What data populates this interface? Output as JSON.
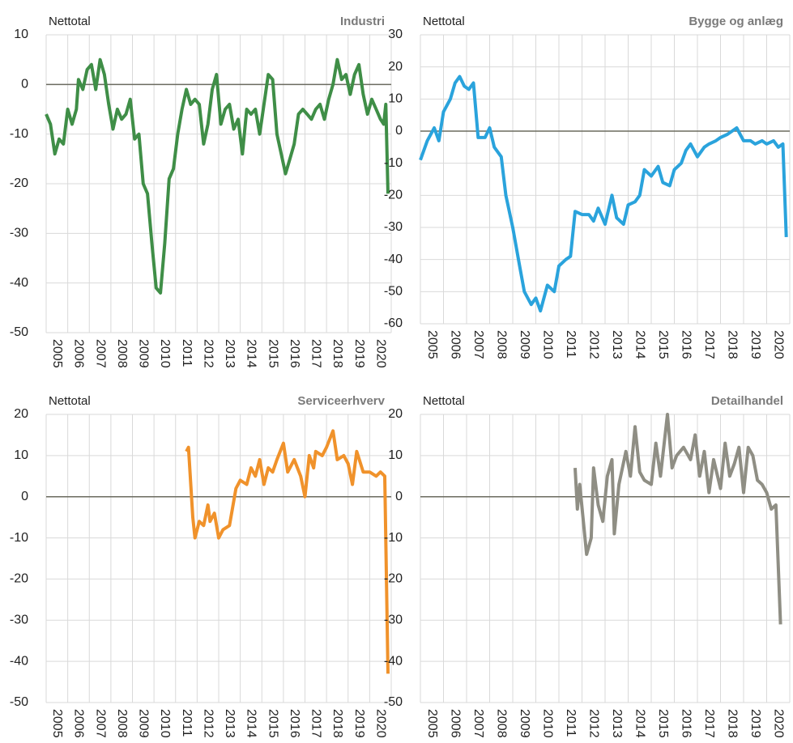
{
  "chart_data": [
    {
      "type": "line",
      "title": "Industri",
      "y_label": "Nettotal",
      "xlim": [
        2004.5,
        2020.5
      ],
      "xticks": [
        2005,
        2006,
        2007,
        2008,
        2009,
        2010,
        2011,
        2012,
        2013,
        2014,
        2015,
        2016,
        2017,
        2018,
        2019,
        2020
      ],
      "ylim": [
        -50,
        10
      ],
      "yticks": [
        -50,
        -40,
        -30,
        -20,
        -10,
        0,
        10
      ],
      "grid": true,
      "x": [
        2004.5,
        2004.7,
        2004.9,
        2005.1,
        2005.3,
        2005.5,
        2005.7,
        2005.9,
        2006.0,
        2006.2,
        2006.4,
        2006.6,
        2006.8,
        2007.0,
        2007.2,
        2007.4,
        2007.6,
        2007.8,
        2008.0,
        2008.2,
        2008.4,
        2008.6,
        2008.8,
        2009.0,
        2009.2,
        2009.4,
        2009.6,
        2009.8,
        2010.0,
        2010.2,
        2010.4,
        2010.6,
        2010.8,
        2011.0,
        2011.2,
        2011.4,
        2011.6,
        2011.8,
        2012.0,
        2012.2,
        2012.4,
        2012.6,
        2012.8,
        2013.0,
        2013.2,
        2013.4,
        2013.6,
        2013.8,
        2014.0,
        2014.2,
        2014.4,
        2014.6,
        2014.8,
        2015.0,
        2015.2,
        2015.4,
        2015.6,
        2015.8,
        2016.0,
        2016.2,
        2016.4,
        2016.6,
        2016.8,
        2017.0,
        2017.2,
        2017.4,
        2017.6,
        2017.8,
        2018.0,
        2018.2,
        2018.4,
        2018.6,
        2018.8,
        2019.0,
        2019.2,
        2019.4,
        2019.6,
        2019.8,
        2020.0,
        2020.15,
        2020.25,
        2020.35
      ],
      "series": [
        {
          "color": "#3f8e47",
          "values": [
            -6,
            -8,
            -14,
            -11,
            -12,
            -5,
            -8,
            -5,
            1,
            -1,
            3,
            4,
            -1,
            5,
            2,
            -4,
            -9,
            -5,
            -7,
            -6,
            -3,
            -11,
            -10,
            -20,
            -22,
            -32,
            -41,
            -42,
            -32,
            -19,
            -17,
            -10,
            -5,
            -1,
            -4,
            -3,
            -4,
            -12,
            -8,
            -1,
            2,
            -8,
            -5,
            -4,
            -9,
            -7,
            -14,
            -5,
            -6,
            -5,
            -10,
            -4,
            2,
            1,
            -10,
            -14,
            -18,
            -15,
            -12,
            -6,
            -5,
            -6,
            -7,
            -5,
            -4,
            -7,
            -3,
            0,
            5,
            1,
            2,
            -2,
            2,
            4,
            -2,
            -6,
            -3,
            -5,
            -7,
            -8,
            -4,
            -22
          ]
        }
      ]
    },
    {
      "type": "line",
      "title": "Bygge og anlæg",
      "y_label": "Nettotal",
      "xlim": [
        2004.5,
        2020.5
      ],
      "xticks": [
        2005,
        2006,
        2007,
        2008,
        2009,
        2010,
        2011,
        2012,
        2013,
        2014,
        2015,
        2016,
        2017,
        2018,
        2019,
        2020
      ],
      "ylim": [
        -60,
        30
      ],
      "yticks": [
        -60,
        -50,
        -40,
        -30,
        -20,
        -10,
        0,
        10,
        20,
        30
      ],
      "grid": true,
      "x": [
        2004.5,
        2004.8,
        2005.1,
        2005.3,
        2005.5,
        2005.8,
        2006.0,
        2006.2,
        2006.4,
        2006.6,
        2006.8,
        2007.0,
        2007.3,
        2007.5,
        2007.7,
        2008.0,
        2008.2,
        2008.5,
        2008.8,
        2009.0,
        2009.3,
        2009.5,
        2009.7,
        2010.0,
        2010.3,
        2010.5,
        2010.8,
        2011.0,
        2011.2,
        2011.5,
        2011.8,
        2012.0,
        2012.2,
        2012.5,
        2012.8,
        2013.0,
        2013.3,
        2013.5,
        2013.8,
        2014.0,
        2014.2,
        2014.5,
        2014.8,
        2015.0,
        2015.3,
        2015.5,
        2015.8,
        2016.0,
        2016.2,
        2016.5,
        2016.8,
        2017.0,
        2017.3,
        2017.5,
        2017.8,
        2018.0,
        2018.2,
        2018.5,
        2018.8,
        2019.0,
        2019.3,
        2019.5,
        2019.8,
        2020.0,
        2020.2,
        2020.35
      ],
      "series": [
        {
          "color": "#2aa3dc",
          "values": [
            -9,
            -3,
            1,
            -3,
            6,
            10,
            15,
            17,
            14,
            13,
            15,
            -2,
            -2,
            1,
            -5,
            -8,
            -20,
            -30,
            -42,
            -50,
            -54,
            -52,
            -56,
            -48,
            -50,
            -42,
            -40,
            -39,
            -25,
            -26,
            -26,
            -28,
            -24,
            -29,
            -20,
            -27,
            -29,
            -23,
            -22,
            -20,
            -12,
            -14,
            -11,
            -16,
            -17,
            -12,
            -10,
            -6,
            -4,
            -8,
            -5,
            -4,
            -3,
            -2,
            -1,
            0,
            1,
            -3,
            -3,
            -4,
            -3,
            -4,
            -3,
            -5,
            -4,
            -33
          ]
        }
      ]
    },
    {
      "type": "line",
      "title": "Serviceerhverv",
      "y_label": "Nettotal",
      "xlim": [
        2004.5,
        2020.5
      ],
      "xticks": [
        2005,
        2006,
        2007,
        2008,
        2009,
        2010,
        2011,
        2012,
        2013,
        2014,
        2015,
        2016,
        2017,
        2018,
        2019,
        2020
      ],
      "ylim": [
        -50,
        20
      ],
      "yticks": [
        -50,
        -40,
        -30,
        -20,
        -10,
        0,
        10,
        20
      ],
      "grid": true,
      "x": [
        2011.0,
        2011.1,
        2011.3,
        2011.4,
        2011.6,
        2011.8,
        2012.0,
        2012.1,
        2012.3,
        2012.5,
        2012.7,
        2013.0,
        2013.3,
        2013.5,
        2013.8,
        2014.0,
        2014.2,
        2014.4,
        2014.6,
        2014.8,
        2015.0,
        2015.2,
        2015.5,
        2015.7,
        2016.0,
        2016.3,
        2016.5,
        2016.7,
        2016.9,
        2017.0,
        2017.3,
        2017.5,
        2017.8,
        2018.0,
        2018.3,
        2018.5,
        2018.7,
        2018.9,
        2019.2,
        2019.5,
        2019.8,
        2020.0,
        2020.2,
        2020.35
      ],
      "series": [
        {
          "color": "#f0922b",
          "values": [
            11,
            12,
            -5,
            -10,
            -6,
            -7,
            -2,
            -6,
            -4,
            -10,
            -8,
            -7,
            2,
            4,
            3,
            7,
            5,
            9,
            3,
            7,
            6,
            9,
            13,
            6,
            9,
            5,
            0,
            10,
            7,
            11,
            10,
            12,
            16,
            9,
            10,
            8,
            3,
            11,
            6,
            6,
            5,
            6,
            5,
            -43
          ]
        }
      ]
    },
    {
      "type": "line",
      "title": "Detailhandel",
      "y_label": "Nettotal",
      "xlim": [
        2004.5,
        2020.5
      ],
      "xticks": [
        2005,
        2006,
        2007,
        2008,
        2009,
        2010,
        2011,
        2012,
        2013,
        2014,
        2015,
        2016,
        2017,
        2018,
        2019,
        2020
      ],
      "ylim": [
        -50,
        20
      ],
      "yticks": [
        -50,
        -40,
        -30,
        -20,
        -10,
        0,
        10,
        20
      ],
      "grid": true,
      "x": [
        2011.2,
        2011.3,
        2011.4,
        2011.7,
        2011.9,
        2012.0,
        2012.2,
        2012.4,
        2012.6,
        2012.8,
        2012.9,
        2013.1,
        2013.4,
        2013.6,
        2013.8,
        2014.0,
        2014.2,
        2014.5,
        2014.7,
        2014.9,
        2015.2,
        2015.4,
        2015.6,
        2015.9,
        2016.2,
        2016.4,
        2016.6,
        2016.8,
        2017.0,
        2017.2,
        2017.5,
        2017.7,
        2017.9,
        2018.1,
        2018.3,
        2018.5,
        2018.7,
        2018.9,
        2019.1,
        2019.3,
        2019.5,
        2019.7,
        2019.9,
        2020.1
      ],
      "series": [
        {
          "color": "#8f8e84",
          "values": [
            7,
            -3,
            3,
            -14,
            -10,
            7,
            -2,
            -6,
            5,
            9,
            -9,
            3,
            11,
            5,
            17,
            6,
            4,
            3,
            13,
            5,
            20,
            7,
            10,
            12,
            9,
            15,
            5,
            11,
            1,
            9,
            2,
            13,
            5,
            8,
            12,
            1,
            12,
            10,
            4,
            3,
            1,
            -3,
            -2,
            -31
          ]
        }
      ]
    }
  ]
}
